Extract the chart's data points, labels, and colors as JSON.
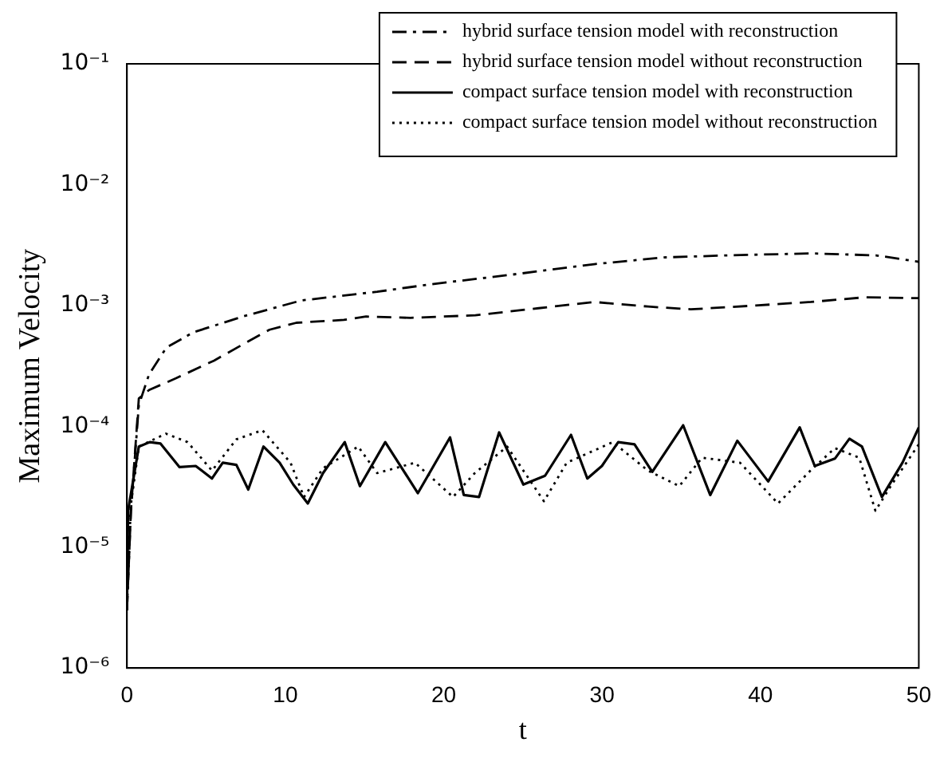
{
  "chart_data": {
    "type": "line",
    "xlabel": "t",
    "ylabel": "Maximum Velocity",
    "log": "y",
    "legend": "top right",
    "marker": "none",
    "grid": false,
    "xlim": [
      0,
      50
    ],
    "xticks": [
      0,
      10,
      20,
      30,
      40,
      50
    ],
    "ylim": [
      1e-06,
      0.1
    ],
    "yticks": [
      {
        "value": 1e-06,
        "label": "10⁻⁶"
      },
      {
        "value": 1e-05,
        "label": "10⁻⁵"
      },
      {
        "value": 0.0001,
        "label": "10⁻⁴"
      },
      {
        "value": 0.001,
        "label": "10⁻³"
      },
      {
        "value": 0.01,
        "label": "10⁻²"
      },
      {
        "value": 0.1,
        "label": "10⁻¹"
      }
    ],
    "series": [
      {
        "name": "hybrid surface tension model with reconstruction",
        "color": "#000000",
        "line_style": "dashdot",
        "x": [
          0,
          0.25,
          0.75,
          1.4,
          2.5,
          4.2,
          7.3,
          11,
          15.8,
          19.2,
          24.3,
          29.5,
          33.9,
          38,
          43.2,
          47.3,
          50
        ],
        "values": [
          3e-06,
          2e-05,
          0.00015,
          0.00027,
          0.00045,
          0.0006,
          0.00081,
          0.0011,
          0.0013,
          0.0015,
          0.0018,
          0.0022,
          0.0025,
          0.0026,
          0.0027,
          0.0026,
          0.0023
        ]
      },
      {
        "name": "hybrid surface tension model without reconstruction",
        "color": "#000000",
        "line_style": "dashed",
        "x": [
          0,
          0.25,
          0.75,
          1.4,
          3.1,
          5.5,
          7.6,
          9,
          10.7,
          13.7,
          15.1,
          17.9,
          22,
          26,
          29.5,
          32.9,
          35.6,
          39.7,
          43.2,
          46.6,
          50
        ],
        "values": [
          3e-06,
          2e-05,
          0.00017,
          0.0002,
          0.00025,
          0.00035,
          0.0005,
          0.00063,
          0.00072,
          0.00076,
          0.00081,
          0.00079,
          0.00083,
          0.00095,
          0.00107,
          0.00098,
          0.00093,
          0.001,
          0.00107,
          0.00117,
          0.00115
        ]
      },
      {
        "name": "compact surface tension model with reconstruction",
        "color": "#000000",
        "line_style": "solid",
        "x": [
          0,
          0.07,
          0.75,
          1.44,
          2.12,
          3.32,
          4.34,
          5.37,
          6.05,
          6.91,
          7.66,
          8.62,
          9.64,
          10.5,
          11.42,
          12.38,
          13.75,
          14.71,
          16.31,
          18.37,
          20.4,
          21.27,
          22.23,
          23.5,
          25.03,
          26.4,
          28.04,
          29.07,
          29.99,
          31.02,
          32.05,
          33.17,
          35.12,
          36.83,
          38.54,
          40.49,
          42.48,
          43.43,
          44.7,
          45.62,
          46.41,
          47.67,
          48.97,
          50
        ],
        "values": [
          3e-06,
          2e-05,
          6.8e-05,
          7.4e-05,
          7.2e-05,
          4.6e-05,
          4.7e-05,
          3.7e-05,
          5e-05,
          4.8e-05,
          3e-05,
          6.8e-05,
          5e-05,
          3.3e-05,
          2.3e-05,
          4.1e-05,
          7.4e-05,
          3.2e-05,
          7.4e-05,
          2.8e-05,
          8.1e-05,
          2.7e-05,
          2.6e-05,
          8.9e-05,
          3.3e-05,
          3.9e-05,
          8.5e-05,
          3.7e-05,
          4.7e-05,
          7.4e-05,
          7.1e-05,
          4.2e-05,
          0.000102,
          2.7e-05,
          7.6e-05,
          3.5e-05,
          9.8e-05,
          4.7e-05,
          5.4e-05,
          7.9e-05,
          6.8e-05,
          2.6e-05,
          5e-05,
          9.8e-05
        ]
      },
      {
        "name": "compact surface tension model without reconstruction",
        "color": "#000000",
        "line_style": "dotted",
        "x": [
          0,
          0.24,
          0.75,
          2.46,
          3.83,
          5.37,
          6.91,
          8.55,
          10.33,
          11.18,
          12.38,
          14.6,
          15.8,
          18.19,
          20.59,
          21.96,
          24.01,
          26.33,
          27.77,
          30.68,
          32.9,
          34.88,
          36.32,
          38.71,
          41.11,
          43.16,
          44.7,
          46.24,
          47.26,
          48.29,
          50
        ],
        "values": [
          3e-06,
          2.2e-05,
          6.8e-05,
          8.7e-05,
          7.4e-05,
          4.3e-05,
          7.8e-05,
          9.3e-05,
          5e-05,
          2.6e-05,
          4.5e-05,
          6.8e-05,
          4.1e-05,
          5e-05,
          2.6e-05,
          4.1e-05,
          6.8e-05,
          2.4e-05,
          5e-05,
          7.4e-05,
          4.3e-05,
          3.2e-05,
          5.5e-05,
          5e-05,
          2.3e-05,
          4.3e-05,
          6.6e-05,
          5.5e-05,
          2e-05,
          3.3e-05,
          7.1e-05
        ]
      }
    ]
  }
}
